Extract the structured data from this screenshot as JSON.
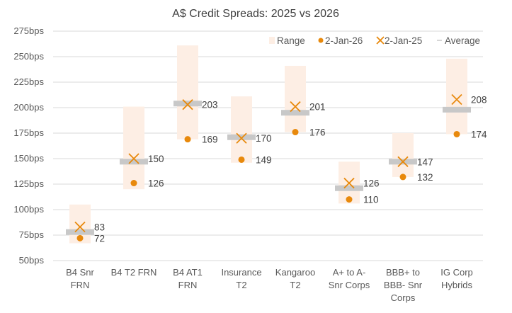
{
  "chart_data": {
    "type": "range-dot",
    "title": "A$ Credit Spreads: 2025 vs 2026",
    "ylim": [
      50,
      275
    ],
    "yticks": [
      50,
      75,
      100,
      125,
      150,
      175,
      200,
      225,
      250,
      275
    ],
    "ytick_labels": [
      "50bps",
      "75bps",
      "100bps",
      "125bps",
      "150bps",
      "175bps",
      "200bps",
      "225bps",
      "250bps",
      "275bps"
    ],
    "grid": true,
    "legend_position": "top-right",
    "legend": [
      "Range",
      "2-Jan-26",
      "2-Jan-25",
      "Average"
    ],
    "categories": [
      [
        "B4 Snr",
        "FRN"
      ],
      [
        "B4 T2 FRN"
      ],
      [
        "B4 AT1",
        "FRN"
      ],
      [
        "Insurance",
        "T2"
      ],
      [
        "Kangaroo",
        "T2"
      ],
      [
        "A+ to A-",
        "Snr Corps"
      ],
      [
        "BBB+ to",
        "BBB- Snr",
        "Corps"
      ],
      [
        "IG Corp",
        "Hybrids"
      ]
    ],
    "range_low": [
      67,
      120,
      169,
      146,
      176,
      106,
      132,
      174
    ],
    "range_high": [
      105,
      201,
      261,
      211,
      241,
      147,
      175,
      248
    ],
    "average": [
      78,
      147,
      204,
      171,
      195,
      121,
      147,
      198
    ],
    "jan26": [
      72,
      126,
      169,
      149,
      176,
      110,
      132,
      174
    ],
    "jan25": [
      83,
      150,
      203,
      170,
      201,
      126,
      147,
      208
    ],
    "colors": {
      "range": "#fdeee4",
      "jan26": "#e8890c",
      "jan25": "#e8890c",
      "average": "#c8c8c8",
      "grid": "#d9d9d9"
    }
  }
}
